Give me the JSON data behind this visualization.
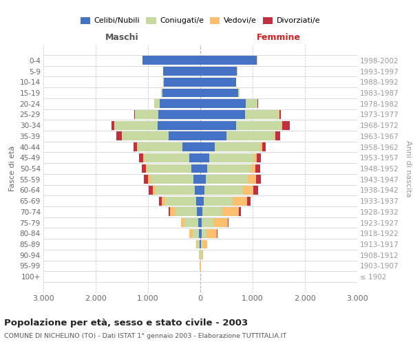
{
  "age_groups": [
    "0-4",
    "5-9",
    "10-14",
    "15-19",
    "20-24",
    "25-29",
    "30-34",
    "35-39",
    "40-44",
    "45-49",
    "50-54",
    "55-59",
    "60-64",
    "65-69",
    "70-74",
    "75-79",
    "80-84",
    "85-89",
    "90-94",
    "95-99",
    "100+"
  ],
  "birth_years": [
    "1998-2002",
    "1993-1997",
    "1988-1992",
    "1983-1987",
    "1978-1982",
    "1973-1977",
    "1968-1972",
    "1963-1967",
    "1958-1962",
    "1953-1957",
    "1948-1952",
    "1943-1947",
    "1938-1942",
    "1933-1937",
    "1928-1932",
    "1923-1927",
    "1918-1922",
    "1913-1917",
    "1908-1912",
    "1903-1907",
    "≤ 1902"
  ],
  "maschi": {
    "celibi": [
      1100,
      710,
      700,
      730,
      780,
      800,
      820,
      600,
      340,
      210,
      170,
      130,
      100,
      80,
      60,
      40,
      20,
      10,
      5,
      2,
      2
    ],
    "coniugati": [
      5,
      2,
      5,
      20,
      100,
      450,
      820,
      900,
      860,
      860,
      840,
      820,
      750,
      590,
      420,
      260,
      120,
      40,
      15,
      3,
      2
    ],
    "vedovi": [
      1,
      1,
      1,
      1,
      2,
      5,
      5,
      5,
      10,
      20,
      30,
      50,
      60,
      70,
      100,
      70,
      70,
      30,
      10,
      2,
      1
    ],
    "divorziati": [
      0,
      0,
      1,
      2,
      5,
      10,
      50,
      100,
      70,
      80,
      80,
      80,
      80,
      50,
      30,
      5,
      2,
      0,
      0,
      0,
      0
    ]
  },
  "femmine": {
    "nubili": [
      1080,
      700,
      680,
      720,
      870,
      850,
      680,
      500,
      280,
      170,
      130,
      110,
      80,
      60,
      40,
      30,
      20,
      10,
      5,
      2,
      2
    ],
    "coniugate": [
      5,
      3,
      8,
      30,
      220,
      650,
      870,
      920,
      870,
      860,
      840,
      800,
      730,
      560,
      380,
      220,
      100,
      35,
      15,
      3,
      2
    ],
    "vedove": [
      1,
      1,
      1,
      2,
      5,
      10,
      10,
      20,
      30,
      50,
      80,
      150,
      200,
      280,
      320,
      280,
      200,
      80,
      30,
      5,
      2
    ],
    "divorziate": [
      0,
      0,
      1,
      2,
      10,
      30,
      150,
      80,
      70,
      80,
      100,
      100,
      100,
      60,
      30,
      5,
      5,
      2,
      0,
      0,
      0
    ]
  },
  "colors": {
    "celibi": "#4472C4",
    "coniugati": "#C5D9A0",
    "vedovi": "#FAC070",
    "divorziati": "#C0303E"
  },
  "xlim": 3000,
  "xticks": [
    -3000,
    -2000,
    -1000,
    0,
    1000,
    2000,
    3000
  ],
  "title": "Popolazione per età, sesso e stato civile - 2003",
  "subtitle": "COMUNE DI NICHELINO (TO) - Dati ISTAT 1° gennaio 2003 - Elaborazione TUTTITALIA.IT",
  "ylabel_left": "Fasce di età",
  "ylabel_right": "Anni di nascita",
  "label_maschi": "Maschi",
  "label_femmine": "Femmine",
  "legend_labels": [
    "Celibi/Nubili",
    "Coniugati/e",
    "Vedovi/e",
    "Divorziati/e"
  ],
  "bg_color": "#ffffff",
  "grid_color": "#cccccc",
  "bar_height": 0.82
}
